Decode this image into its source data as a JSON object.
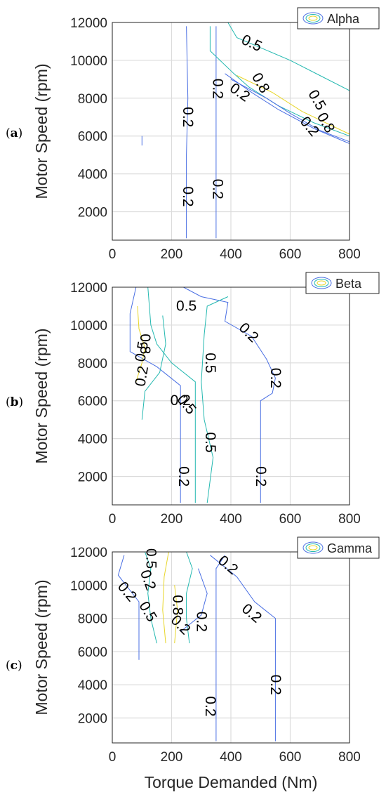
{
  "chart_data": [
    {
      "type": "contour",
      "panel_label": "a",
      "legend": "Alpha",
      "xlabel": "",
      "ylabel": "Motor Speed (rpm)",
      "xlim": [
        0,
        800
      ],
      "ylim": [
        500,
        12000
      ],
      "xticks": [
        "0",
        "200",
        "400",
        "600",
        "800"
      ],
      "yticks": [
        "2000",
        "4000",
        "6000",
        "8000",
        "10000",
        "12000"
      ],
      "grid": true,
      "contour_labels": [
        "0.2",
        "0.2",
        "0.2",
        "0.2",
        "0.5",
        "0.8",
        "0.2",
        "0.5",
        "0.8",
        "0.2"
      ],
      "levels": [
        0.2,
        0.5,
        0.8
      ]
    },
    {
      "type": "contour",
      "panel_label": "b",
      "legend": "Beta",
      "xlabel": "",
      "ylabel": "Motor Speed (rpm)",
      "xlim": [
        0,
        800
      ],
      "ylim": [
        500,
        12000
      ],
      "xticks": [
        "0",
        "200",
        "400",
        "600",
        "800"
      ],
      "yticks": [
        "2000",
        "4000",
        "6000",
        "8000",
        "10000",
        "12000"
      ],
      "grid": true,
      "contour_labels": [
        "0.5",
        "0.2",
        "0.2",
        "0.8",
        "0.5",
        "0.2",
        "0.2",
        "0.5",
        "0.5",
        "0.5",
        "0.2",
        "0.2"
      ],
      "levels": [
        0.2,
        0.5,
        0.8
      ]
    },
    {
      "type": "contour",
      "panel_label": "c",
      "legend": "Gamma",
      "xlabel": "Torque Demanded (Nm)",
      "ylabel": "Motor Speed (rpm)",
      "xlim": [
        0,
        800
      ],
      "ylim": [
        500,
        12000
      ],
      "xticks": [
        "0",
        "200",
        "400",
        "600",
        "800"
      ],
      "yticks": [
        "2000",
        "4000",
        "6000",
        "8000",
        "10000",
        "12000"
      ],
      "grid": true,
      "contour_labels": [
        "0.5",
        "0.2",
        "0.2",
        "0.2",
        "0.5",
        "0.8",
        "0.2",
        "0.2",
        "0.2",
        "0.2",
        "0.2"
      ],
      "levels": [
        0.2,
        0.5,
        0.8
      ]
    }
  ],
  "colors": {
    "level_0.2": "#4a6fe3",
    "level_0.5": "#23b8b0",
    "level_0.8": "#e8d62a",
    "grid": "#dcdcdc",
    "axis": "#262626"
  }
}
